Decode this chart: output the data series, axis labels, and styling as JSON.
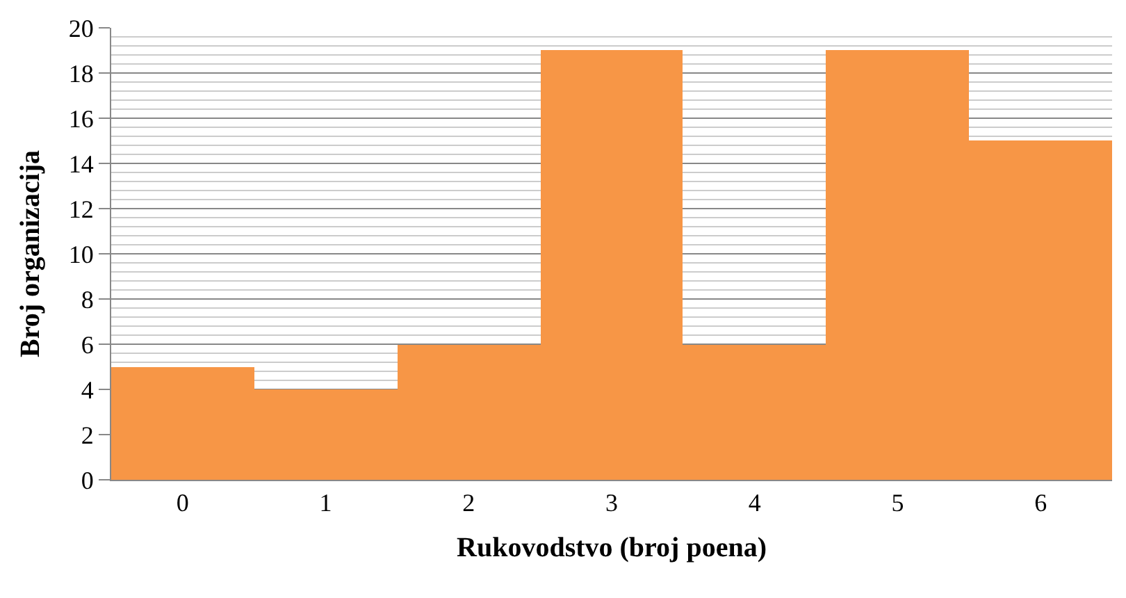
{
  "chart_data": {
    "type": "bar",
    "xlabel": "Rukovodstvo (broj poena)",
    "ylabel": "Broj organizacija",
    "categories": [
      "0",
      "1",
      "2",
      "3",
      "4",
      "5",
      "6"
    ],
    "values": [
      5,
      4,
      6,
      19,
      6,
      19,
      15
    ],
    "color": "#f79646",
    "ylim": [
      0,
      20
    ],
    "yticks": [
      0,
      2,
      4,
      6,
      8,
      10,
      12,
      14,
      16,
      18,
      20
    ],
    "grid": "y"
  }
}
